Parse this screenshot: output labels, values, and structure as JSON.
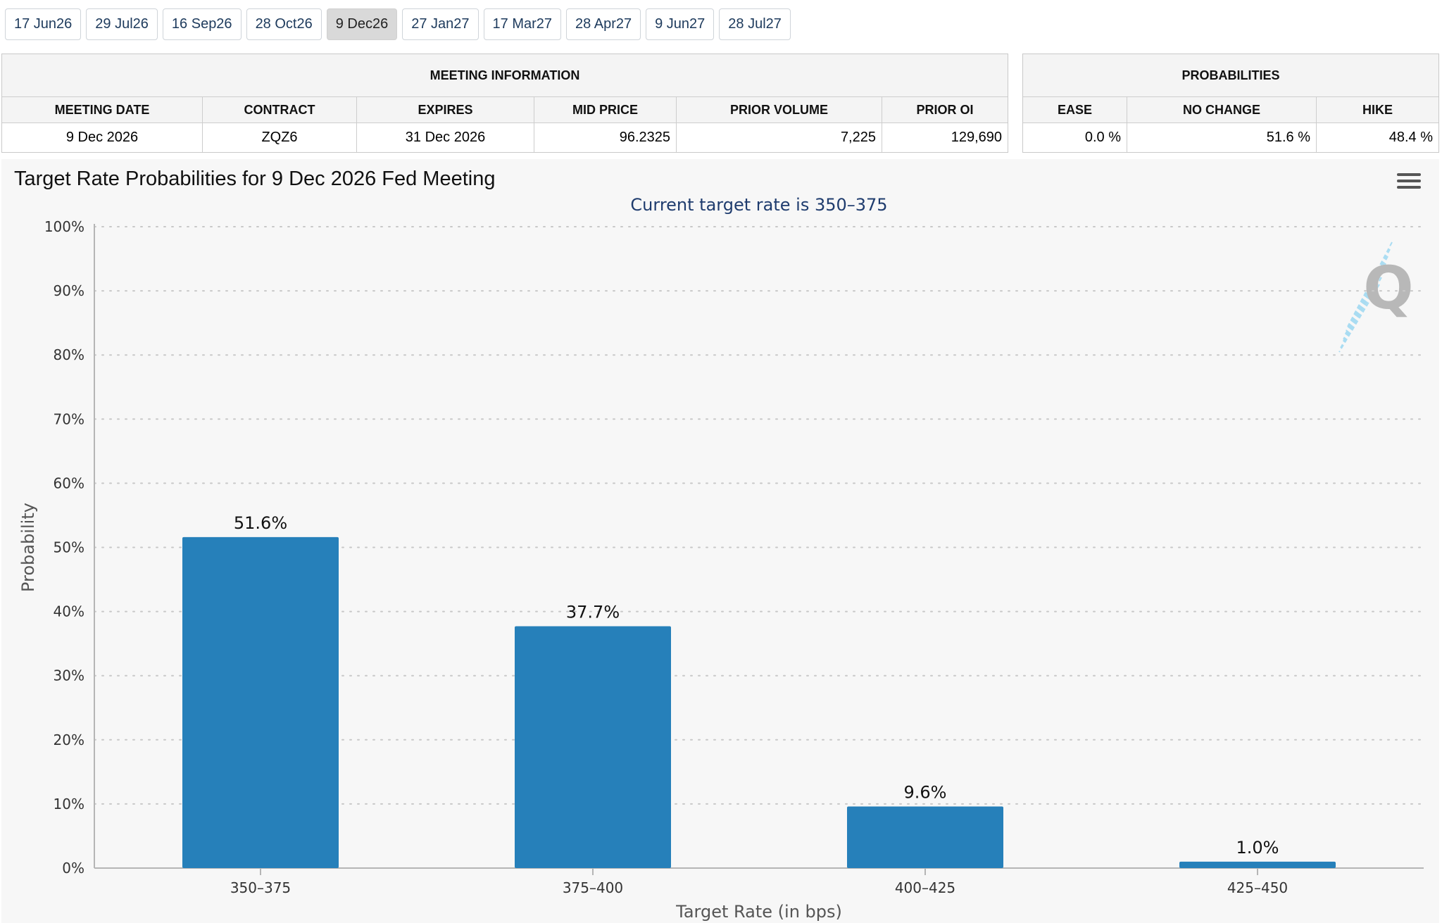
{
  "tabs": [
    {
      "label": "17 Jun26"
    },
    {
      "label": "29 Jul26"
    },
    {
      "label": "16 Sep26"
    },
    {
      "label": "28 Oct26"
    },
    {
      "label": "9 Dec26"
    },
    {
      "label": "27 Jan27"
    },
    {
      "label": "17 Mar27"
    },
    {
      "label": "28 Apr27"
    },
    {
      "label": "9 Jun27"
    },
    {
      "label": "28 Jul27"
    }
  ],
  "active_tab": "9 Dec26",
  "meeting_info": {
    "title": "MEETING INFORMATION",
    "headers": [
      "MEETING DATE",
      "CONTRACT",
      "EXPIRES",
      "MID PRICE",
      "PRIOR VOLUME",
      "PRIOR OI"
    ],
    "values": [
      "9 Dec 2026",
      "ZQZ6",
      "31 Dec 2026",
      "96.2325",
      "7,225",
      "129,690"
    ]
  },
  "probabilities": {
    "title": "PROBABILITIES",
    "headers": [
      "EASE",
      "NO CHANGE",
      "HIKE"
    ],
    "values": [
      "0.0 %",
      "51.6 %",
      "48.4 %"
    ]
  },
  "colors": {
    "bar": "#2680ba",
    "subtitle": "#1f3c6e",
    "watermark": "#b8b8b8",
    "active_tab_bg": "#d9d9d9"
  },
  "icons": [
    "hamburger-menu-icon",
    "quikstrike-logo"
  ],
  "chart_data": {
    "type": "bar",
    "title": "Target Rate Probabilities for 9 Dec 2026 Fed Meeting",
    "subtitle": "Current target rate is 350–375",
    "xlabel": "Target Rate (in bps)",
    "ylabel": "Probability",
    "categories": [
      "350–375",
      "375–400",
      "400–425",
      "425–450"
    ],
    "values": [
      51.6,
      37.7,
      9.6,
      1.0
    ],
    "data_labels": [
      "51.6%",
      "37.7%",
      "9.6%",
      "1.0%"
    ],
    "ylim": [
      0,
      100
    ],
    "yticks": [
      0,
      10,
      20,
      30,
      40,
      50,
      60,
      70,
      80,
      90,
      100
    ],
    "ytick_labels": [
      "0%",
      "10%",
      "20%",
      "30%",
      "40%",
      "50%",
      "60%",
      "70%",
      "80%",
      "90%",
      "100%"
    ],
    "grid": true,
    "legend": "none"
  }
}
